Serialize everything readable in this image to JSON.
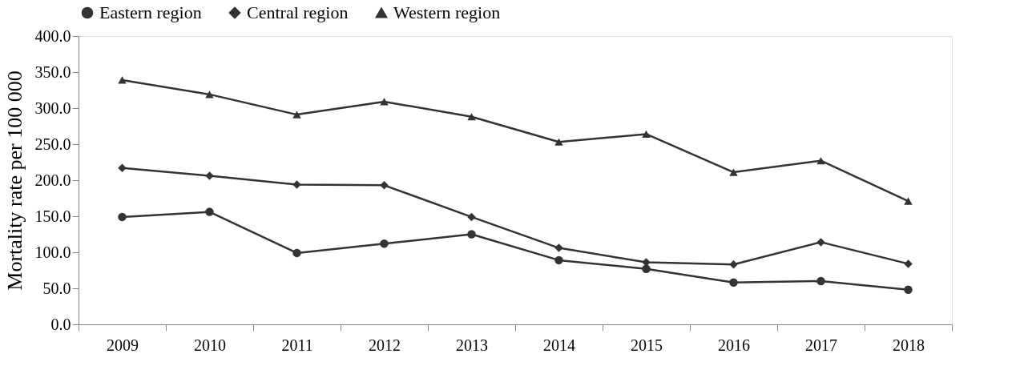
{
  "chart_data": {
    "type": "line",
    "ylabel": "Mortality rate per 100 000",
    "categories": [
      "2009",
      "2010",
      "2011",
      "2012",
      "2013",
      "2014",
      "2015",
      "2016",
      "2017",
      "2018"
    ],
    "series": [
      {
        "name": "Eastern region",
        "color": "#333333",
        "marker": "circle",
        "values": [
          149,
          156,
          99,
          112,
          125,
          89,
          77,
          58,
          60,
          48
        ]
      },
      {
        "name": "Central region",
        "color": "#333333",
        "marker": "diamond",
        "values": [
          217,
          206,
          194,
          193,
          149,
          106,
          86,
          83,
          114,
          84
        ]
      },
      {
        "name": "Western region",
        "color": "#333333",
        "marker": "triangle",
        "values": [
          339,
          319,
          291,
          309,
          288,
          253,
          264,
          211,
          227,
          171
        ]
      }
    ],
    "ylim": [
      0,
      400
    ],
    "yticks": [
      {
        "value": 0,
        "label": "0.0"
      },
      {
        "value": 50,
        "label": "50.0"
      },
      {
        "value": 100,
        "label": "100.0"
      },
      {
        "value": 150,
        "label": "150.0"
      },
      {
        "value": 200,
        "label": "200.0"
      },
      {
        "value": 250,
        "label": "250.0"
      },
      {
        "value": 300,
        "label": "300.0"
      },
      {
        "value": 350,
        "label": "350.0"
      },
      {
        "value": 400,
        "label": "400.0"
      }
    ],
    "grid": false,
    "legend": "top",
    "line_style": "solid"
  }
}
